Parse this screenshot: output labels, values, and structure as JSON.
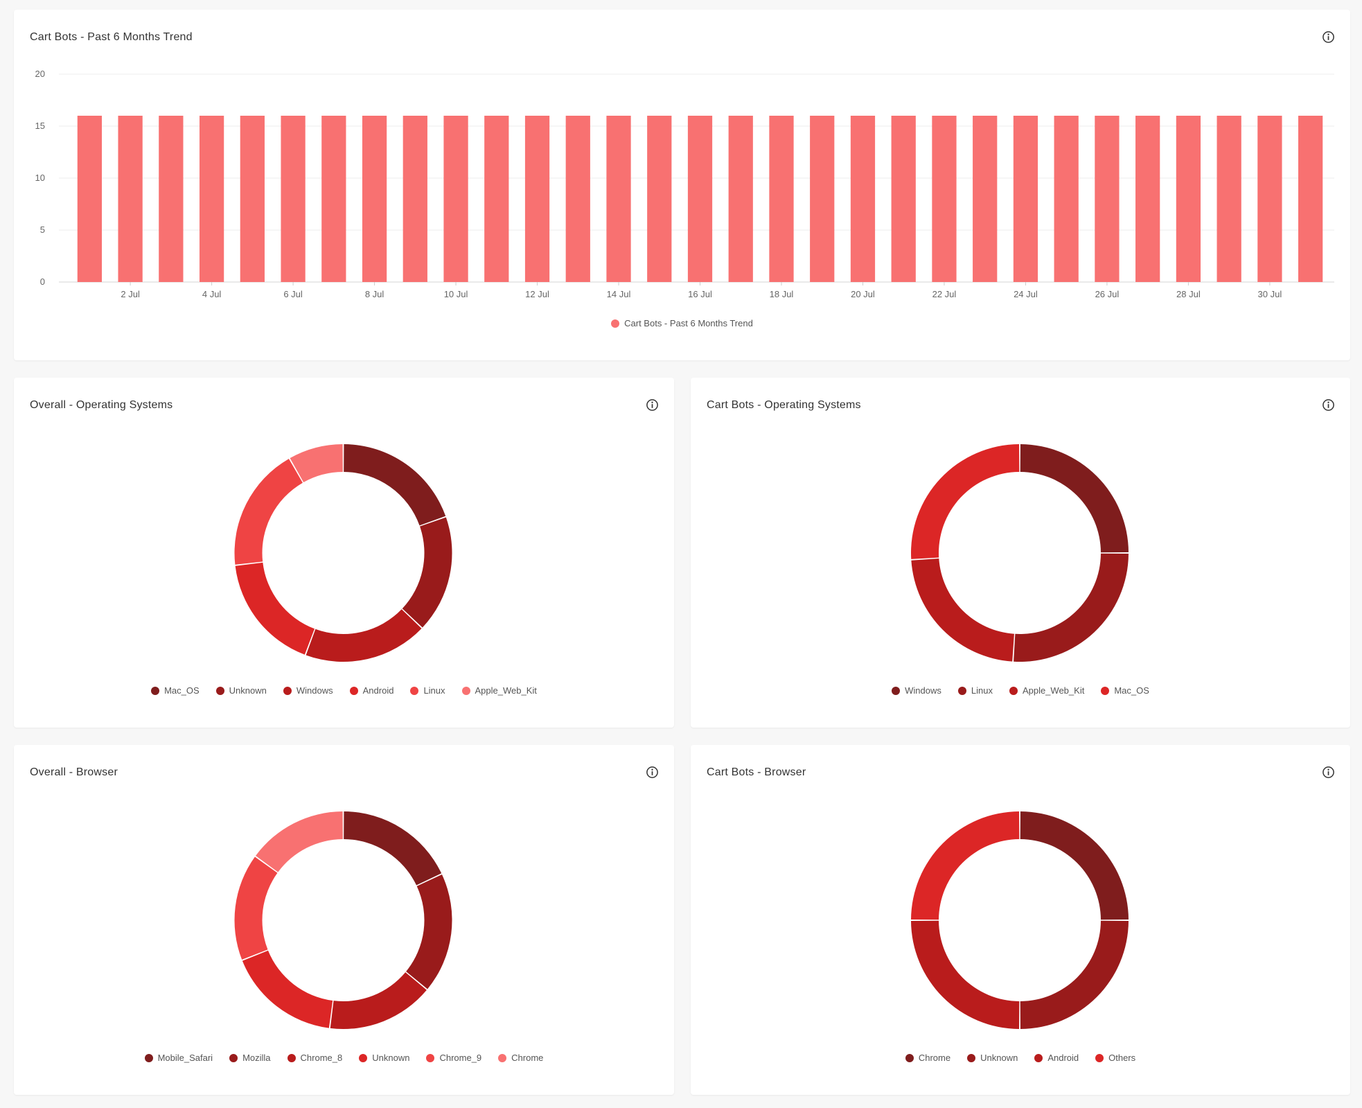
{
  "colors": {
    "bar": "#f87171",
    "palette_overall": [
      "#7f1d1d",
      "#991b1b",
      "#b91c1c",
      "#dc2626",
      "#ef4444",
      "#f87171"
    ],
    "palette_bots": [
      "#7f1d1d",
      "#991b1b",
      "#b91c1c",
      "#dc2626"
    ]
  },
  "icons": {
    "info": "info-circle-icon"
  },
  "trend": {
    "title": "Cart Bots - Past 6 Months Trend",
    "legend_label": "Cart Bots - Past 6 Months Trend"
  },
  "os_overall": {
    "title": "Overall - Operating Systems",
    "legend": [
      "Mac_OS",
      "Unknown",
      "Windows",
      "Android",
      "Linux",
      "Apple_Web_Kit"
    ]
  },
  "os_bots": {
    "title": "Cart Bots - Operating Systems",
    "legend": [
      "Windows",
      "Linux",
      "Apple_Web_Kit",
      "Mac_OS"
    ]
  },
  "browser_overall": {
    "title": "Overall - Browser",
    "legend": [
      "Mobile_Safari",
      "Mozilla",
      "Chrome_8",
      "Unknown",
      "Chrome_9",
      "Chrome"
    ]
  },
  "browser_bots": {
    "title": "Cart Bots - Browser",
    "legend": [
      "Chrome",
      "Unknown",
      "Android",
      "Others"
    ]
  },
  "chart_data": [
    {
      "type": "bar",
      "title": "Cart Bots - Past 6 Months Trend",
      "categories": [
        "1 Jul",
        "2 Jul",
        "3 Jul",
        "4 Jul",
        "5 Jul",
        "6 Jul",
        "7 Jul",
        "8 Jul",
        "9 Jul",
        "10 Jul",
        "11 Jul",
        "12 Jul",
        "13 Jul",
        "14 Jul",
        "15 Jul",
        "16 Jul",
        "17 Jul",
        "18 Jul",
        "19 Jul",
        "20 Jul",
        "21 Jul",
        "22 Jul",
        "23 Jul",
        "24 Jul",
        "25 Jul",
        "26 Jul",
        "27 Jul",
        "28 Jul",
        "29 Jul",
        "30 Jul",
        "31 Jul"
      ],
      "tick_labels": [
        "2 Jul",
        "4 Jul",
        "6 Jul",
        "8 Jul",
        "10 Jul",
        "12 Jul",
        "14 Jul",
        "16 Jul",
        "18 Jul",
        "20 Jul",
        "22 Jul",
        "24 Jul",
        "26 Jul",
        "28 Jul",
        "30 Jul"
      ],
      "series": [
        {
          "name": "Cart Bots - Past 6 Months Trend",
          "values": [
            16,
            16,
            16,
            16,
            16,
            16,
            16,
            16,
            16,
            16,
            16,
            16,
            16,
            16,
            16,
            16,
            16,
            16,
            16,
            16,
            16,
            16,
            16,
            16,
            16,
            16,
            16,
            16,
            16,
            16,
            16
          ]
        }
      ],
      "ylim": [
        0,
        20
      ],
      "yticks": [
        0,
        5,
        10,
        15,
        20
      ],
      "grid": true,
      "legend": "bottom"
    },
    {
      "type": "pie",
      "title": "Overall - Operating Systems",
      "labels": [
        "Mac_OS",
        "Unknown",
        "Windows",
        "Android",
        "Linux",
        "Apple_Web_Kit"
      ],
      "values": [
        19,
        17,
        18,
        17,
        18,
        8
      ],
      "legend": "bottom"
    },
    {
      "type": "pie",
      "title": "Cart Bots - Operating Systems",
      "labels": [
        "Windows",
        "Linux",
        "Apple_Web_Kit",
        "Mac_OS"
      ],
      "values": [
        25,
        26,
        23,
        26
      ],
      "legend": "bottom"
    },
    {
      "type": "pie",
      "title": "Overall - Browser",
      "labels": [
        "Mobile_Safari",
        "Mozilla",
        "Chrome_8",
        "Unknown",
        "Chrome_9",
        "Chrome"
      ],
      "values": [
        18,
        18,
        16,
        17,
        16,
        15
      ],
      "legend": "bottom"
    },
    {
      "type": "pie",
      "title": "Cart Bots - Browser",
      "labels": [
        "Chrome",
        "Unknown",
        "Android",
        "Others"
      ],
      "values": [
        25,
        25,
        25,
        25
      ],
      "legend": "bottom"
    }
  ]
}
